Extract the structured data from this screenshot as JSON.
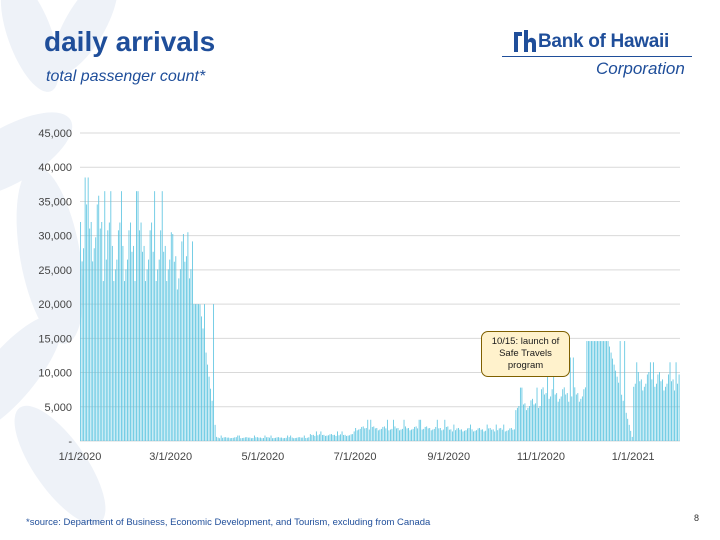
{
  "slide": {
    "title": "daily arrivals",
    "subtitle": "total passenger count*",
    "footnote": "*source: Department of Business, Economic Development, and Tourism, excluding from Canada",
    "page_number": "8"
  },
  "logo": {
    "name": "Bank of Hawaii",
    "subtitle": "Corporation",
    "color": "#1f4e9a"
  },
  "colors": {
    "title": "#1f4e9a",
    "bars": "#5bc4e0",
    "grid": "#d9d9d9",
    "axis_text": "#444444",
    "callout_fill": "#fff2cc",
    "callout_border": "#7f6000"
  },
  "chart_data": {
    "type": "bar",
    "title": "",
    "xlabel": "",
    "ylabel": "",
    "ylim": [
      0,
      45000
    ],
    "yticks": [
      0,
      5000,
      10000,
      15000,
      20000,
      25000,
      30000,
      35000,
      40000,
      45000
    ],
    "ytick_labels": [
      "-",
      "5,000",
      "10,000",
      "15,000",
      "20,000",
      "25,000",
      "30,000",
      "35,000",
      "40,000",
      "45,000"
    ],
    "x_start": "1/1/2020",
    "x_end": "1/31/2021",
    "x_tick_labels": [
      "1/1/2020",
      "3/1/2020",
      "5/1/2020",
      "7/1/2020",
      "9/1/2020",
      "11/1/2020",
      "1/1/2021"
    ],
    "grid": true,
    "annotation": "10/15: launch of Safe Travels program",
    "series": [
      {
        "values_by_period": [
          {
            "from": "1/1/2020",
            "to": "1/15/2020",
            "typical": 32000,
            "peak": 38500
          },
          {
            "from": "1/16/2020",
            "to": "2/29/2020",
            "typical": 28500,
            "peak": 36500
          },
          {
            "from": "3/1/2020",
            "to": "3/15/2020",
            "typical": 27000,
            "peak": 30500
          },
          {
            "from": "3/16/2020",
            "to": "3/31/2020",
            "typical": 8000,
            "peak": 20000
          },
          {
            "from": "4/1/2020",
            "to": "5/31/2020",
            "typical": 500,
            "peak": 800
          },
          {
            "from": "6/1/2020",
            "to": "6/30/2020",
            "typical": 900,
            "peak": 1400
          },
          {
            "from": "7/1/2020",
            "to": "8/31/2020",
            "typical": 1900,
            "peak": 3100
          },
          {
            "from": "9/1/2020",
            "to": "10/14/2020",
            "typical": 1700,
            "peak": 2400
          },
          {
            "from": "10/15/2020",
            "to": "10/31/2020",
            "typical": 5500,
            "peak": 7800
          },
          {
            "from": "11/1/2020",
            "to": "11/30/2020",
            "typical": 7000,
            "peak": 12200
          },
          {
            "from": "12/1/2020",
            "to": "12/31/2020",
            "typical": 8000,
            "peak": 14600
          },
          {
            "from": "1/1/2021",
            "to": "1/31/2021",
            "typical": 9000,
            "peak": 11500
          }
        ]
      }
    ]
  }
}
